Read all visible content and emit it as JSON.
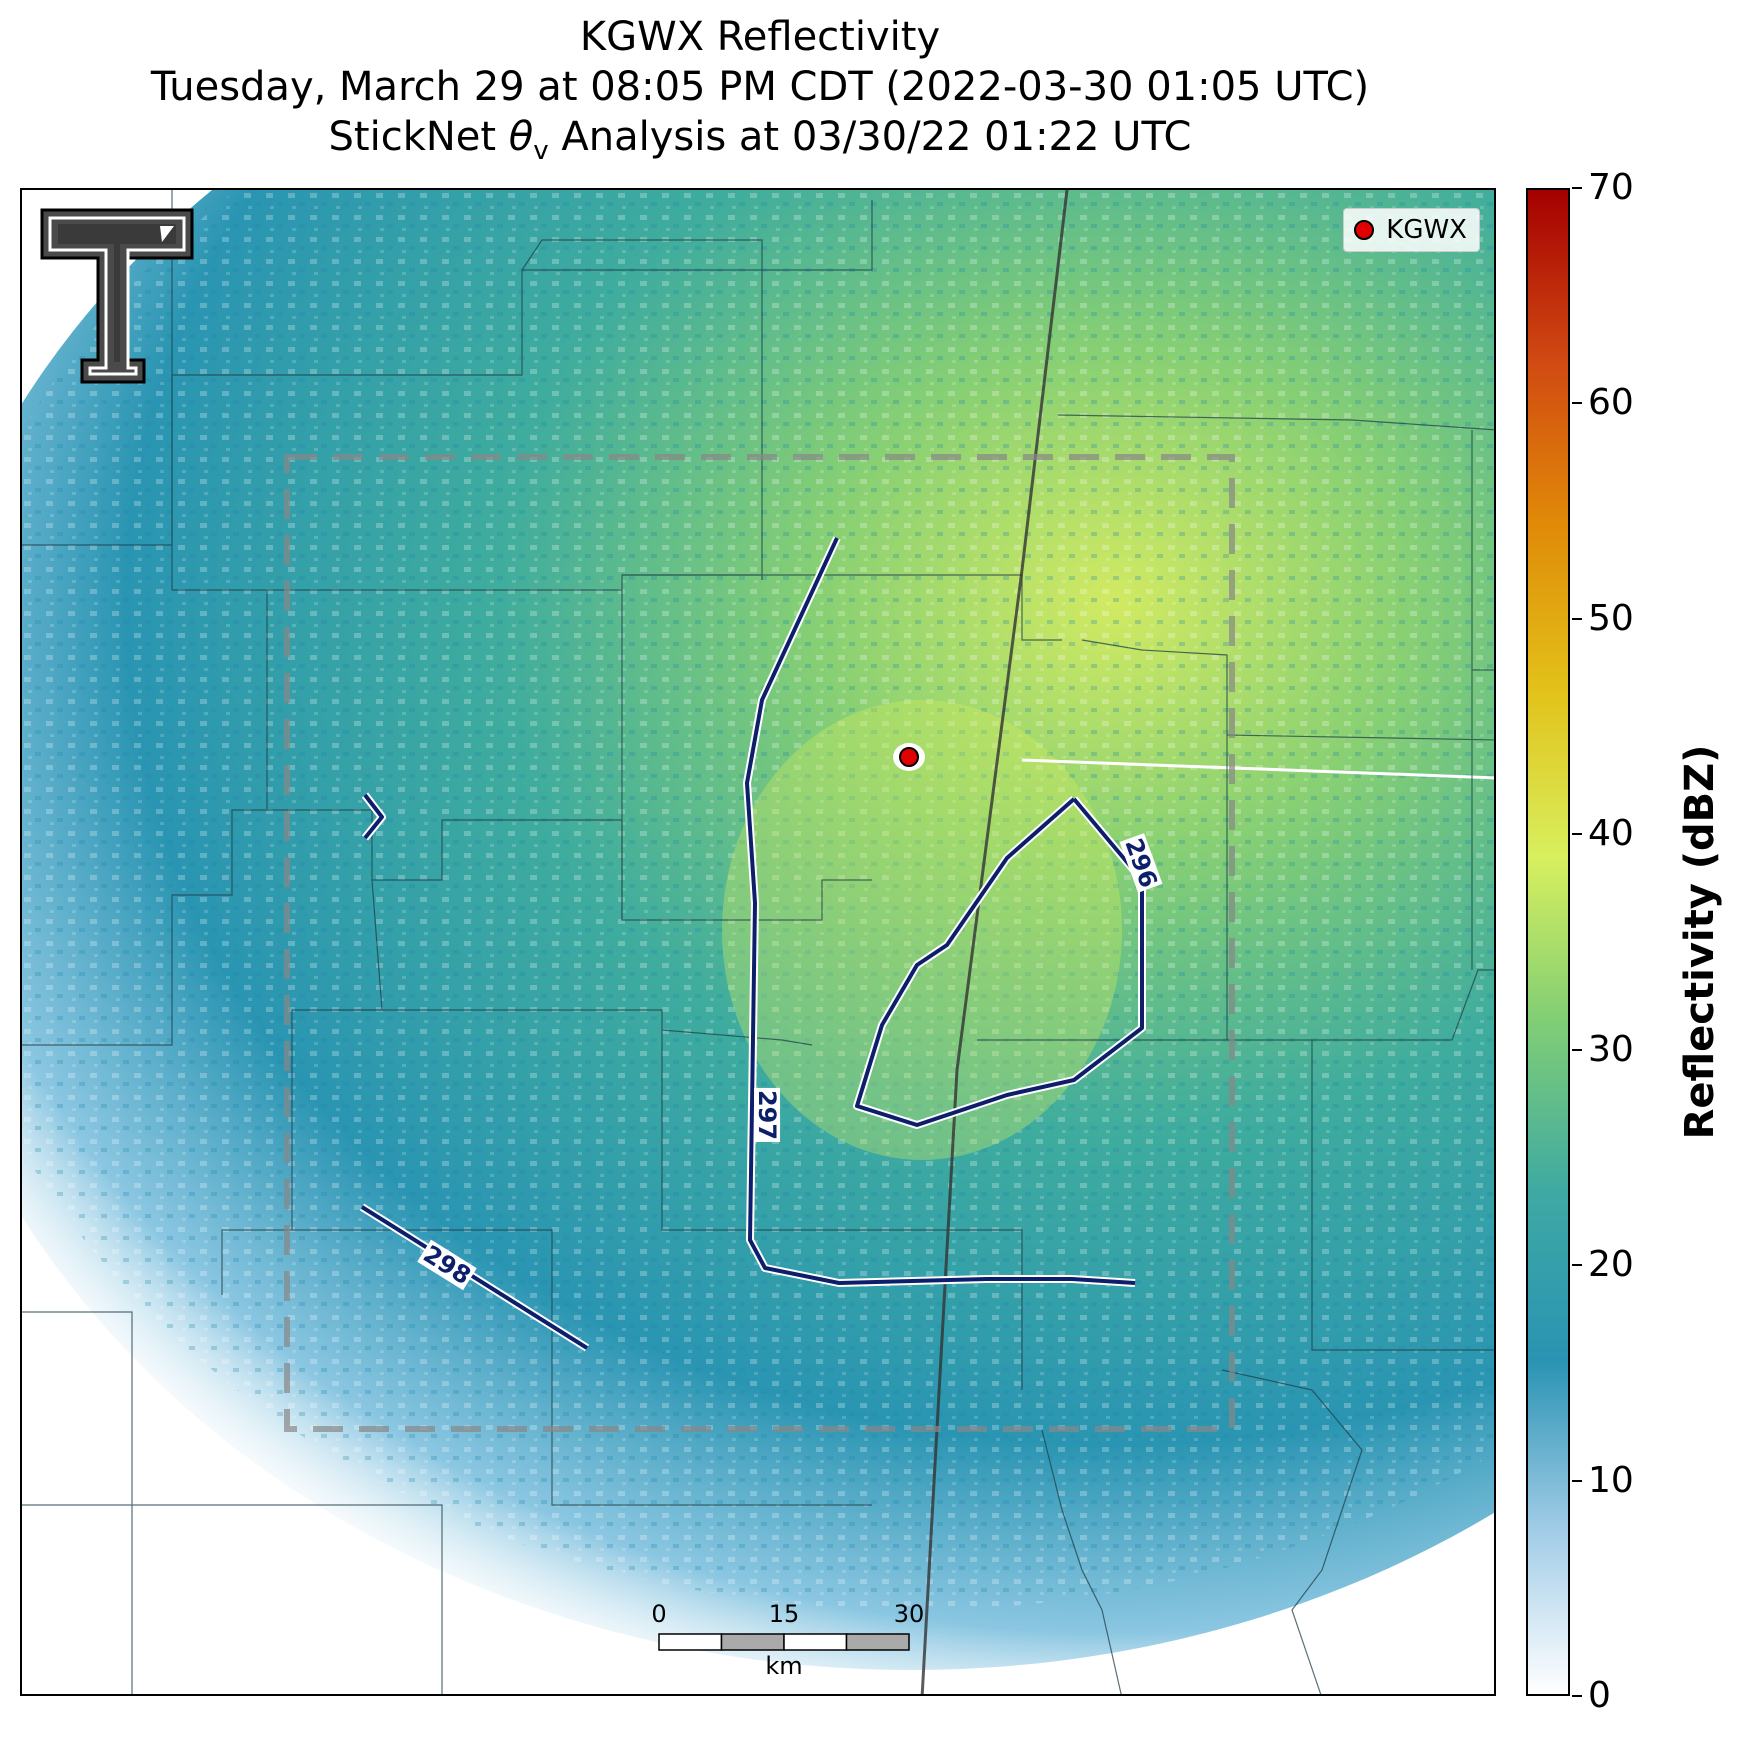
{
  "title": {
    "line1": "KGWX Reflectivity",
    "line2": "Tuesday, March 29 at 08:05 PM CDT (2022-03-30 01:05 UTC)",
    "line3_prefix": "StickNet ",
    "line3_symbol": "θ",
    "line3_sub": "v",
    "line3_suffix": " Analysis at 03/30/22 01:22 UTC"
  },
  "legend": {
    "label": "KGWX"
  },
  "colorbar": {
    "label": "Reflectivity (dBZ)",
    "range": [
      0,
      70
    ],
    "ticks": [
      "0",
      "10",
      "20",
      "30",
      "40",
      "50",
      "60",
      "70"
    ],
    "colors": [
      "#ffffff",
      "#9fcbe6",
      "#2a93b3",
      "#3ea9a3",
      "#7ecd76",
      "#d8ef5e",
      "#e2c21a",
      "#e08a08",
      "#d04812",
      "#a40000"
    ]
  },
  "contours": [
    {
      "label": "296"
    },
    {
      "label": "297"
    },
    {
      "label": "298"
    }
  ],
  "scalebar": {
    "ticks": [
      "0",
      "15",
      "30"
    ],
    "unit": "km"
  },
  "radar_site": {
    "name": "KGWX",
    "color": "#e00000"
  },
  "logo": {
    "name": "Texas Tech Double-T"
  }
}
